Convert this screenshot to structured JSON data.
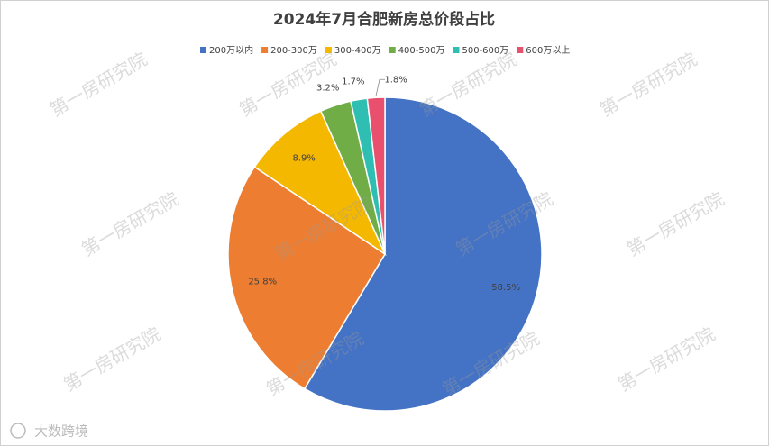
{
  "chart_data": {
    "type": "pie",
    "title": "2024年7月合肥新房总价段占比",
    "categories": [
      "200万以内",
      "200-300万",
      "300-400万",
      "400-500万",
      "500-600万",
      "600万以上"
    ],
    "values": [
      58.5,
      25.8,
      8.9,
      3.2,
      1.7,
      1.8
    ],
    "value_labels": [
      "58.5%",
      "25.8%",
      "8.9%",
      "3.2%",
      "1.7%",
      "1.8%"
    ],
    "colors": [
      "#4472c4",
      "#ed7d31",
      "#f5b800",
      "#70ad47",
      "#2ebfb2",
      "#e8506e"
    ],
    "legend": "top",
    "watermark": "第一房研究院",
    "logo": "大数跨境"
  }
}
